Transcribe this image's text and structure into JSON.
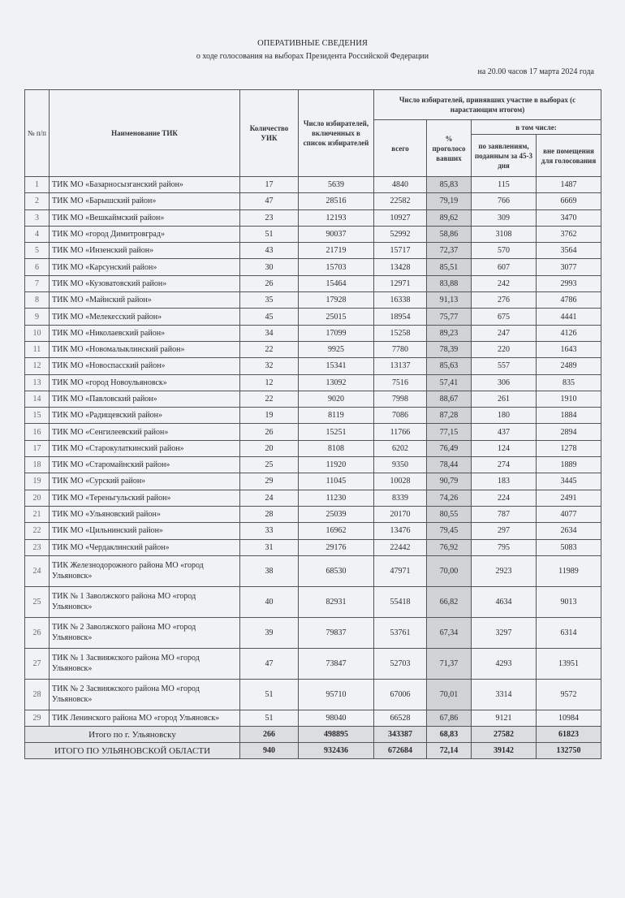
{
  "document": {
    "title": "ОПЕРАТИВНЫЕ СВЕДЕНИЯ",
    "subtitle": "о ходе голосования на выборах Президента Российской Федерации",
    "date": "на 20.00 часов 17 марта 2024 года"
  },
  "headers": {
    "num": "№ п/п",
    "name": "Наименование ТИК",
    "uik": "Количество УИК",
    "voters": "Число избирателей, включенных в список избирателей",
    "participated": "Число избирателей, принявших участие в выборах (с нарастающим итогом)",
    "total": "всего",
    "pct": "% проголосо вавших",
    "including": "в том числе:",
    "early": "по заявлениям, поданным за 45-3 дня",
    "outside": "вне помещения для голосования"
  },
  "rows": [
    [
      "1",
      "ТИК МО «Базарносызганский район»",
      "17",
      "5639",
      "4840",
      "85,83",
      "115",
      "1487"
    ],
    [
      "2",
      "ТИК МО «Барышский район»",
      "47",
      "28516",
      "22582",
      "79,19",
      "766",
      "6669"
    ],
    [
      "3",
      "ТИК МО «Вешкаймский район»",
      "23",
      "12193",
      "10927",
      "89,62",
      "309",
      "3470"
    ],
    [
      "4",
      "ТИК МО «город Димитровград»",
      "51",
      "90037",
      "52992",
      "58,86",
      "3108",
      "3762"
    ],
    [
      "5",
      "ТИК МО «Инзенский район»",
      "43",
      "21719",
      "15717",
      "72,37",
      "570",
      "3564"
    ],
    [
      "6",
      "ТИК МО «Карсунский район»",
      "30",
      "15703",
      "13428",
      "85,51",
      "607",
      "3077"
    ],
    [
      "7",
      "ТИК МО «Кузоватовский район»",
      "26",
      "15464",
      "12971",
      "83,88",
      "242",
      "2993"
    ],
    [
      "8",
      "ТИК МО «Майнский район»",
      "35",
      "17928",
      "16338",
      "91,13",
      "276",
      "4786"
    ],
    [
      "9",
      "ТИК МО «Мелекесский район»",
      "45",
      "25015",
      "18954",
      "75,77",
      "675",
      "4441"
    ],
    [
      "10",
      "ТИК МО «Николаевский район»",
      "34",
      "17099",
      "15258",
      "89,23",
      "247",
      "4126"
    ],
    [
      "11",
      "ТИК МО «Новомалыклинский район»",
      "22",
      "9925",
      "7780",
      "78,39",
      "220",
      "1643"
    ],
    [
      "12",
      "ТИК МО «Новоспасский район»",
      "32",
      "15341",
      "13137",
      "85,63",
      "557",
      "2489"
    ],
    [
      "13",
      "ТИК МО «город Новоульяновск»",
      "12",
      "13092",
      "7516",
      "57,41",
      "306",
      "835"
    ],
    [
      "14",
      "ТИК МО «Павловский район»",
      "22",
      "9020",
      "7998",
      "88,67",
      "261",
      "1910"
    ],
    [
      "15",
      "ТИК МО «Радищевский район»",
      "19",
      "8119",
      "7086",
      "87,28",
      "180",
      "1884"
    ],
    [
      "16",
      "ТИК МО «Сенгилеевский район»",
      "26",
      "15251",
      "11766",
      "77,15",
      "437",
      "2894"
    ],
    [
      "17",
      "ТИК МО «Старокулаткинский район»",
      "20",
      "8108",
      "6202",
      "76,49",
      "124",
      "1278"
    ],
    [
      "18",
      "ТИК МО «Старомайнский район»",
      "25",
      "11920",
      "9350",
      "78,44",
      "274",
      "1889"
    ],
    [
      "19",
      "ТИК МО «Сурский район»",
      "29",
      "11045",
      "10028",
      "90,79",
      "183",
      "3445"
    ],
    [
      "20",
      "ТИК МО «Тереньгульский район»",
      "24",
      "11230",
      "8339",
      "74,26",
      "224",
      "2491"
    ],
    [
      "21",
      "ТИК МО «Ульяновский район»",
      "28",
      "25039",
      "20170",
      "80,55",
      "787",
      "4077"
    ],
    [
      "22",
      "ТИК МО «Цильнинский район»",
      "33",
      "16962",
      "13476",
      "79,45",
      "297",
      "2634"
    ],
    [
      "23",
      "ТИК МО «Чердаклинский район»",
      "31",
      "29176",
      "22442",
      "76,92",
      "795",
      "5083"
    ],
    [
      "24",
      "ТИК Железнодорожного района МО «город Ульяновск»",
      "38",
      "68530",
      "47971",
      "70,00",
      "2923",
      "11989"
    ],
    [
      "25",
      "ТИК № 1 Заволжского района МО «город Ульяновск»",
      "40",
      "82931",
      "55418",
      "66,82",
      "4634",
      "9013"
    ],
    [
      "26",
      "ТИК № 2 Заволжского района МО «город Ульяновск»",
      "39",
      "79837",
      "53761",
      "67,34",
      "3297",
      "6314"
    ],
    [
      "27",
      "ТИК № 1 Засвияжского района МО «город Ульяновск»",
      "47",
      "73847",
      "52703",
      "71,37",
      "4293",
      "13951"
    ],
    [
      "28",
      "ТИК № 2 Засвияжского района МО «город Ульяновск»",
      "51",
      "95710",
      "67006",
      "70,01",
      "3314",
      "9572"
    ],
    [
      "29",
      "ТИК Ленинского района МО «город Ульяновск»",
      "51",
      "98040",
      "66528",
      "67,86",
      "9121",
      "10984"
    ]
  ],
  "totals": [
    [
      "Итого по г. Ульяновску",
      "266",
      "498895",
      "343387",
      "68,83",
      "27582",
      "61823"
    ],
    [
      "ИТОГО ПО УЛЬЯНОВСКОЙ ОБЛАСТИ",
      "940",
      "932436",
      "672684",
      "72,14",
      "39142",
      "132750"
    ]
  ]
}
